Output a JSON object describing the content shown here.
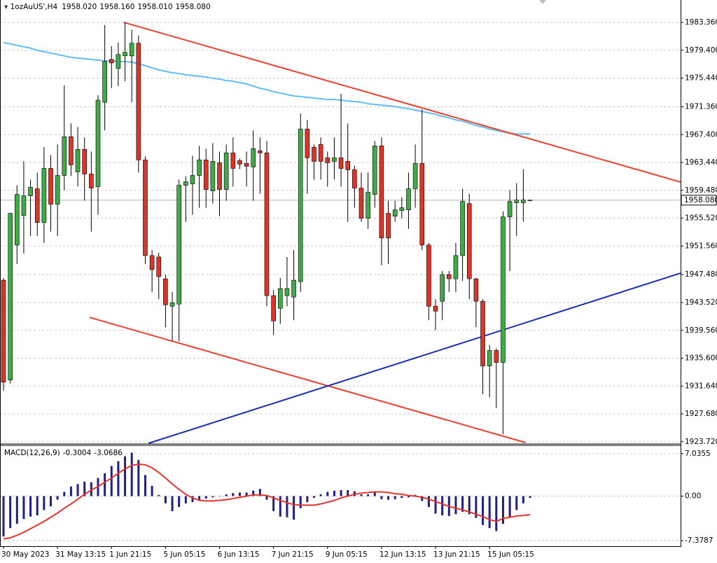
{
  "chart_data": [
    {
      "type": "candlestick",
      "title": "1ozAuUS',H4",
      "header_values": [
        {
          "value": 1958.02,
          "label": "1958.020"
        },
        {
          "value": 1958.16,
          "label": "1958.160"
        },
        {
          "value": 1958.01,
          "label": "1958.010"
        },
        {
          "value": 1958.08,
          "label": "1958.080"
        }
      ],
      "categories": [
        "30 May 2023",
        null,
        null,
        null,
        null,
        null,
        null,
        null,
        "31 May 13:15",
        null,
        null,
        null,
        null,
        null,
        null,
        null,
        "1 Jun 21:15",
        null,
        null,
        null,
        null,
        null,
        null,
        null,
        "5 Jun 05:15",
        null,
        null,
        null,
        null,
        null,
        null,
        null,
        "6 Jun 13:15",
        null,
        null,
        null,
        null,
        null,
        null,
        null,
        "7 Jun 21:15",
        null,
        null,
        null,
        null,
        null,
        null,
        null,
        "9 Jun 05:15",
        null,
        null,
        null,
        null,
        null,
        null,
        null,
        "12 Jun 13:15",
        null,
        null,
        null,
        null,
        null,
        null,
        null,
        "13 Jun 21:15",
        null,
        null,
        null,
        null,
        null,
        null,
        null,
        "15 Jun 05:15",
        null,
        null,
        null,
        null,
        null,
        null
      ],
      "open": [
        1946.7,
        1932.5,
        1951.7,
        1955.9,
        1958.7,
        1959.7,
        1954.9,
        1962.6,
        1957.5,
        1961.6,
        1967.1,
        1962.1,
        1965.3,
        1961.8,
        1960.0,
        1972.0,
        1978.1,
        1976.8,
        1978.6,
        1978.6,
        1980.4,
        1963.8,
        1950.2,
        1950.0,
        1946.9,
        1943.0,
        1943.3,
        1960.2,
        1960.4,
        1961.6,
        1963.8,
        1959.4,
        1963.4,
        1959.6,
        1964.8,
        1963.7,
        1963.3,
        1962.8,
        1965.1,
        1964.8,
        1944.5,
        1942.7,
        1944.5,
        1944.3,
        1946.5,
        1968.2,
        1965.6,
        1966.0,
        1964.1,
        1963.6,
        1964.1,
        1963.6,
        1962.4,
        1959.8,
        1955.5,
        1958.9,
        1965.8,
        1956.2,
        1955.8,
        1956.6,
        1956.7,
        1959.7,
        1963.3,
        1951.7,
        1943.0,
        1943.7,
        1947.5,
        1946.9,
        1950.2,
        1957.6,
        1946.9,
        1943.7,
        1934.5,
        1936.7,
        1935.0,
        1955.7,
        1957.7,
        1957.7,
        1958.02
      ],
      "high": [
        1947.0,
        1956.3,
        1960.2,
        1963.6,
        1961.0,
        1962.0,
        1965.6,
        1964.5,
        1966.0,
        1974.4,
        1969.0,
        1968.5,
        1967.0,
        1965.0,
        1973.0,
        1983.0,
        1980.0,
        1980.5,
        1983.4,
        1982.3,
        1981.5,
        1964.3,
        1951.0,
        1950.6,
        1947.5,
        1945.0,
        1961.0,
        1961.5,
        1964.4,
        1965.8,
        1965.4,
        1966.2,
        1965.0,
        1966.0,
        1967.0,
        1964.0,
        1965.0,
        1968.0,
        1967.0,
        1966.5,
        1945.3,
        1947.0,
        1950.0,
        1951.0,
        1970.4,
        1969.5,
        1966.0,
        1967.0,
        1965.0,
        1967.0,
        1973.2,
        1969.0,
        1963.0,
        1962.0,
        1962.0,
        1966.5,
        1967.0,
        1958.0,
        1958.0,
        1958.5,
        1962.0,
        1966.0,
        1971.0,
        1952.0,
        1944.0,
        1948.0,
        1948.0,
        1952.0,
        1959.7,
        1959.0,
        1947.0,
        1944.0,
        1937.5,
        1937.0,
        1956.5,
        1959.5,
        1960.5,
        1962.5,
        1958.16
      ],
      "low": [
        1931.0,
        1932.0,
        1949.0,
        1950.5,
        1953.0,
        1953.0,
        1952.0,
        1953.6,
        1953.0,
        1959.5,
        1961.5,
        1960.0,
        1958.0,
        1953.6,
        1956.0,
        1968.0,
        1974.0,
        1974.3,
        1975.0,
        1972.0,
        1962.0,
        1949.0,
        1945.0,
        1944.0,
        1940.0,
        1938.0,
        1938.0,
        1955.0,
        1956.0,
        1957.0,
        1957.0,
        1957.6,
        1955.8,
        1958.0,
        1960.0,
        1962.5,
        1960.0,
        1958.0,
        1959.0,
        1943.0,
        1938.9,
        1940.5,
        1943.0,
        1941.0,
        1945.0,
        1959.0,
        1961.0,
        1961.0,
        1960.0,
        1961.0,
        1960.0,
        1955.0,
        1957.0,
        1955.0,
        1954.0,
        1957.0,
        1948.8,
        1949.0,
        1955.0,
        1955.5,
        1954.0,
        1957.0,
        1951.0,
        1941.0,
        1939.6,
        1941.0,
        1945.0,
        1945.0,
        1946.6,
        1944.0,
        1940.0,
        1930.5,
        1930.0,
        1928.5,
        1924.8,
        1948.0,
        1953.0,
        1955.0,
        1958.01
      ],
      "close": [
        1932.2,
        1956.2,
        1958.9,
        1958.7,
        1959.9,
        1954.9,
        1962.6,
        1957.5,
        1961.6,
        1967.1,
        1963.1,
        1965.3,
        1961.8,
        1959.8,
        1972.3,
        1977.8,
        1977.6,
        1978.8,
        1979.1,
        1980.4,
        1963.8,
        1950.2,
        1948.2,
        1947.2,
        1943.2,
        1943.5,
        1960.2,
        1960.7,
        1961.6,
        1963.8,
        1959.6,
        1963.6,
        1959.6,
        1964.8,
        1962.6,
        1963.2,
        1962.9,
        1965.4,
        1964.8,
        1944.5,
        1940.9,
        1945.5,
        1945.5,
        1946.7,
        1968.2,
        1964.1,
        1963.6,
        1963.6,
        1963.4,
        1964.1,
        1962.6,
        1962.4,
        1959.8,
        1955.5,
        1959.2,
        1965.8,
        1952.7,
        1952.7,
        1956.7,
        1957.0,
        1959.7,
        1963.3,
        1951.7,
        1943.0,
        1942.3,
        1947.5,
        1946.9,
        1950.2,
        1957.9,
        1946.9,
        1943.7,
        1934.5,
        1936.7,
        1935.0,
        1955.7,
        1957.9,
        1958.1,
        1958.1,
        1958.08
      ],
      "up_color": "#3faa46",
      "down_color": "#d8362a",
      "overlay": {
        "color": "#62bdf2",
        "values": [
          1980.5,
          1980.3,
          1980.1,
          1979.9,
          1979.7,
          1979.4,
          1979.2,
          1979.0,
          1978.8,
          1978.6,
          1978.4,
          1978.3,
          1978.2,
          1978.1,
          1978.0,
          1977.9,
          1977.9,
          1977.8,
          1977.8,
          1977.7,
          1977.5,
          1977.2,
          1976.9,
          1976.6,
          1976.4,
          1976.2,
          1976.1,
          1975.9,
          1975.8,
          1975.7,
          1975.6,
          1975.4,
          1975.3,
          1975.1,
          1975.0,
          1974.8,
          1974.6,
          1974.3,
          1974.0,
          1973.8,
          1973.5,
          1973.3,
          1973.1,
          1972.9,
          1972.8,
          1972.7,
          1972.6,
          1972.5,
          1972.4,
          1972.4,
          1972.3,
          1972.2,
          1972.1,
          1972.0,
          1971.8,
          1971.7,
          1971.6,
          1971.5,
          1971.4,
          1971.2,
          1971.1,
          1970.9,
          1970.7,
          1970.5,
          1970.3,
          1970.0,
          1969.8,
          1969.5,
          1969.3,
          1969.0,
          1968.7,
          1968.5,
          1968.2,
          1968.0,
          1967.8,
          1967.6,
          1967.5,
          1967.5,
          1967.5
        ]
      },
      "trendlines": [
        {
          "color": "#e8412c",
          "x": [
            17.84,
            100.3
          ],
          "y": [
            1983.36,
            1960.65
          ]
        },
        {
          "color": "#e8412c",
          "x": [
            12.76,
            77.3
          ],
          "y": [
            1941.4,
            1923.6
          ]
        },
        {
          "color": "#1c2db0",
          "x": [
            21.5,
            100.3
          ],
          "y": [
            1923.5,
            1947.7
          ]
        }
      ],
      "last_price": {
        "value": 1958.08,
        "label": "1958.080"
      },
      "xlim": [
        -0.52,
        100.3
      ],
      "ylim": [
        1923.5,
        1986.55
      ],
      "yticks": [
        {
          "value": 1983.36,
          "label": "1983.360"
        },
        {
          "value": 1979.4,
          "label": "1979.400"
        },
        {
          "value": 1975.44,
          "label": "1975.440"
        },
        {
          "value": 1971.36,
          "label": "1971.360"
        },
        {
          "value": 1967.4,
          "label": "1967.400"
        },
        {
          "value": 1963.44,
          "label": "1963.440"
        },
        {
          "value": 1959.48,
          "label": "1959.480"
        },
        {
          "value": 1955.52,
          "label": "1955.520"
        },
        {
          "value": 1951.56,
          "label": "1951.560"
        },
        {
          "value": 1947.48,
          "label": "1947.480"
        },
        {
          "value": 1943.52,
          "label": "1943.520"
        },
        {
          "value": 1939.56,
          "label": "1939.560"
        },
        {
          "value": 1935.6,
          "label": "1935.600"
        },
        {
          "value": 1931.64,
          "label": "1931.640"
        },
        {
          "value": 1927.68,
          "label": "1927.680"
        },
        {
          "value": 1923.72,
          "label": "1923.720"
        }
      ],
      "grid": true
    },
    {
      "type": "macd",
      "title": "MACD(12,26,9)",
      "header_values": [
        -0.3004,
        -3.0686
      ],
      "histogram": {
        "color": "#1f1f86",
        "values": [
          -6.7,
          -5.3,
          -4.6,
          -3.8,
          -3.4,
          -3.2,
          -2.3,
          -1.7,
          -0.6,
          0.7,
          1.6,
          2.0,
          2.4,
          2.3,
          3.0,
          3.8,
          5.0,
          5.8,
          6.6,
          7.2,
          6.0,
          3.5,
          1.7,
          0.2,
          -1.2,
          -2.5,
          -1.8,
          -1.2,
          -1.0,
          -0.6,
          -0.4,
          -0.2,
          0.0,
          0.3,
          0.5,
          0.6,
          0.6,
          0.9,
          1.2,
          -0.6,
          -2.5,
          -3.4,
          -3.5,
          -3.9,
          -2.0,
          -1.0,
          -0.3,
          0.3,
          0.7,
          0.9,
          1.0,
          1.0,
          0.8,
          0.3,
          0.3,
          0.6,
          -0.5,
          -0.6,
          -0.5,
          -0.3,
          -0.2,
          0.2,
          -0.8,
          -1.8,
          -2.9,
          -3.2,
          -3.3,
          -3.0,
          -2.6,
          -3.0,
          -3.6,
          -4.8,
          -5.3,
          -5.8,
          -4.6,
          -3.5,
          -2.3,
          -1.2,
          -0.3004
        ]
      },
      "signal": {
        "color": "#e5352a",
        "values": [
          -7.1,
          -6.9,
          -6.5,
          -6.0,
          -5.4,
          -4.8,
          -4.2,
          -3.5,
          -2.8,
          -2.0,
          -1.3,
          -0.5,
          0.3,
          1.0,
          1.6,
          2.3,
          3.0,
          3.8,
          4.5,
          5.1,
          5.3,
          5.2,
          4.7,
          3.9,
          3.0,
          2.0,
          1.1,
          0.3,
          -0.3,
          -0.7,
          -0.8,
          -0.8,
          -0.7,
          -0.6,
          -0.4,
          -0.2,
          0.0,
          0.2,
          0.2,
          0.1,
          -0.3,
          -0.7,
          -1.1,
          -1.4,
          -1.5,
          -1.5,
          -1.5,
          -1.3,
          -1.0,
          -0.7,
          -0.3,
          0.0,
          0.3,
          0.5,
          0.6,
          0.7,
          0.7,
          0.6,
          0.4,
          0.3,
          0.1,
          0.0,
          -0.2,
          -0.5,
          -0.9,
          -1.3,
          -1.7,
          -2.0,
          -2.3,
          -2.6,
          -3.0,
          -3.4,
          -3.9,
          -4.2,
          -3.7,
          -3.5,
          -3.3,
          -3.2,
          -3.0686
        ]
      },
      "ylim": [
        -8.3,
        8.3
      ],
      "yticks": [
        7.0355,
        {
          "value": 0,
          "label": "0.00"
        },
        -7.3787
      ],
      "grid": true
    }
  ]
}
